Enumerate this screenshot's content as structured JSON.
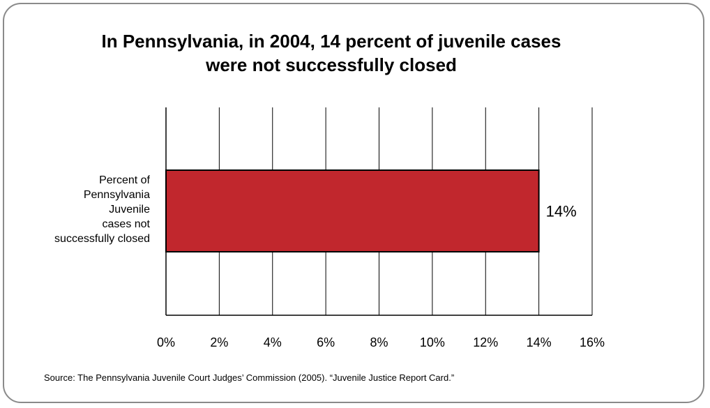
{
  "chart_data": {
    "type": "bar",
    "orientation": "horizontal",
    "title_lines": [
      "In Pennsylvania, in 2004, 14 percent of juvenile cases",
      "were not successfully closed"
    ],
    "categories": [
      "Percent of Pennsylvania Juvenile cases not successfully closed"
    ],
    "category_label_lines": [
      "Percent of",
      "Pennsylvania",
      "Juvenile",
      "cases not",
      "successfully closed"
    ],
    "values": [
      14
    ],
    "data_labels": [
      "14%"
    ],
    "xlim": [
      0,
      16
    ],
    "xticks": [
      0,
      2,
      4,
      6,
      8,
      10,
      12,
      14,
      16
    ],
    "xtick_labels": [
      "0%",
      "2%",
      "4%",
      "6%",
      "8%",
      "10%",
      "12%",
      "14%",
      "16%"
    ],
    "grid": "vertical",
    "bar_color": "#c1272d",
    "source": "Source: The Pennsylvania Juvenile Court Judges’ Commission (2005). “Juvenile Justice Report Card.”"
  }
}
